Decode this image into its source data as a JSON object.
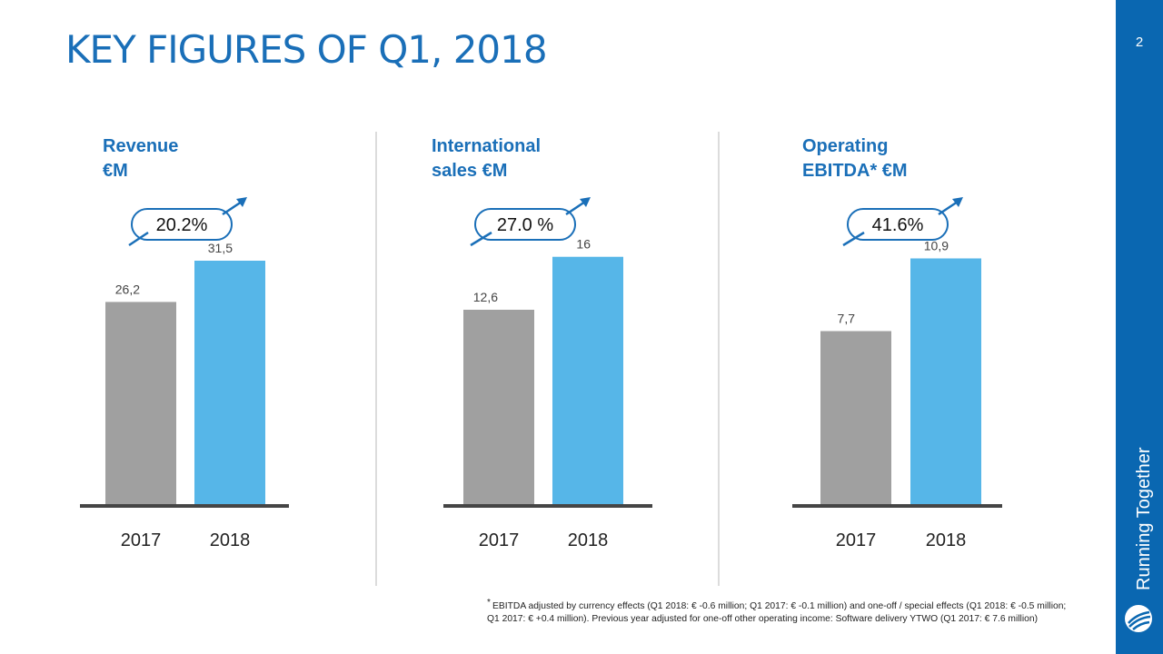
{
  "header": {
    "title": "KEY FIGURES OF Q1, 2018"
  },
  "sidebar": {
    "page_number": "2",
    "tagline": "Running Together"
  },
  "colors": {
    "accent": "#1a6fb8",
    "bar_2017": "#a0a0a0",
    "bar_2018": "#56b6e8",
    "sidebar": "#0a67b1",
    "baseline": "#454545"
  },
  "chart_data": [
    {
      "type": "bar",
      "title_lines": [
        "Revenue",
        "€M"
      ],
      "growth_label": "20.2%",
      "categories": [
        "2017",
        "2018"
      ],
      "values": [
        26.2,
        31.5
      ],
      "value_labels": [
        "26,2",
        "31,5"
      ],
      "ylim": [
        0,
        35
      ]
    },
    {
      "type": "bar",
      "title_lines": [
        "International",
        "sales  €M"
      ],
      "growth_label": "27.0 %",
      "categories": [
        "2017",
        "2018"
      ],
      "values": [
        12.6,
        16
      ],
      "value_labels": [
        "12,6",
        "16"
      ],
      "ylim": [
        0,
        17.5
      ]
    },
    {
      "type": "bar",
      "title_lines": [
        "Operating",
        "EBITDA* €M"
      ],
      "growth_label": "41.6%",
      "categories": [
        "2017",
        "2018"
      ],
      "values": [
        7.7,
        10.9
      ],
      "value_labels": [
        "7,7",
        "10,9"
      ],
      "ylim": [
        0,
        12
      ]
    }
  ],
  "footnote": {
    "marker": "*",
    "line1": "EBITDA adjusted by currency effects (Q1 2018: € -0.6 million; Q1 2017: € -0.1 million) and one-off / special effects (Q1 2018: € -0.5 million;",
    "line2": "Q1 2017: € +0.4 million). Previous year adjusted for one-off other operating income: Software delivery YTWO (Q1 2017: € 7.6 million)"
  }
}
